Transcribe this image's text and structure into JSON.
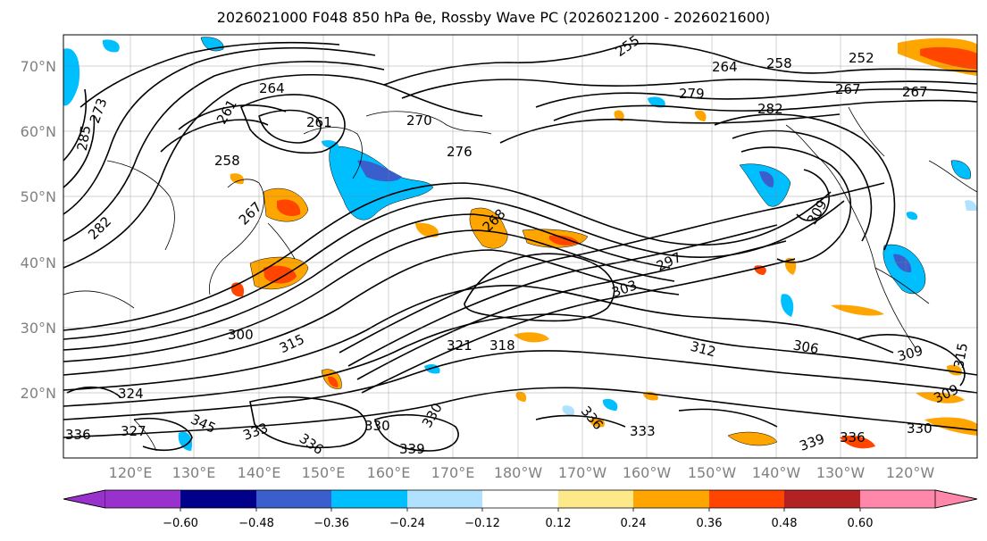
{
  "title": "2026021000 F048 850 hPa θe, Rossby Wave PC (2026021200 - 2026021600)",
  "map": {
    "lat_labels": [
      "70°N",
      "60°N",
      "50°N",
      "40°N",
      "30°N",
      "20°N"
    ],
    "lon_labels": [
      "120°E",
      "130°E",
      "140°E",
      "150°E",
      "160°E",
      "170°E",
      "180°W",
      "170°W",
      "160°W",
      "150°W",
      "140°W",
      "130°W",
      "120°W"
    ],
    "contour_labels": [
      "255",
      "264",
      "258",
      "252",
      "267",
      "267",
      "279",
      "282",
      "264",
      "261",
      "270",
      "276",
      "273",
      "285",
      "261",
      "258",
      "267",
      "282",
      "268",
      "297",
      "303",
      "309",
      "300",
      "315",
      "321",
      "318",
      "312",
      "306",
      "309",
      "324",
      "327",
      "330",
      "336",
      "339",
      "330",
      "333",
      "336",
      "330",
      "336",
      "345",
      "333",
      "336",
      "339",
      "309",
      "315"
    ]
  },
  "colorbar": {
    "ticks": [
      "−0.60",
      "−0.48",
      "−0.36",
      "−0.24",
      "−0.12",
      "0.12",
      "0.24",
      "0.36",
      "0.48",
      "0.60"
    ],
    "colors": [
      "#9932cc",
      "#00008b",
      "#3a5fcd",
      "#00bfff",
      "#b0e2ff",
      "#ffffff",
      "#fde88a",
      "#ffa500",
      "#ff4500",
      "#b22222",
      "#ff88aa"
    ]
  }
}
